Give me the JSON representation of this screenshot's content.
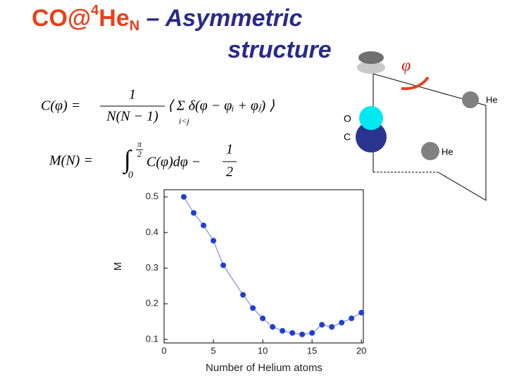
{
  "header": {
    "title": {
      "molecule": "CO@",
      "isotope": "4",
      "element": "He",
      "subscript": "N",
      "rest_line1": " – Asymmetric",
      "rest_line2": "structure"
    }
  },
  "formulas": [
    {
      "lhs": "C(φ) =",
      "numerator": "1",
      "denominator": "N(N − 1)",
      "body": "⟨ Σ δ(φ − φᵢ + φⱼ) ⟩",
      "sum_index": "i<j"
    },
    {
      "lhs": "M(N) =",
      "integral": "∫",
      "upper_limit_num": "π",
      "upper_limit_den": "2",
      "lower_limit": "0",
      "integrand": "C(φ)dφ −",
      "numerator": "1",
      "denominator": "2"
    }
  ],
  "diagram": {
    "angle": "φ",
    "labels": [
      "He",
      "O",
      "C",
      "He"
    ]
  },
  "chart_data": {
    "type": "line",
    "x_label": "Number of Helium atoms",
    "y_label": "M",
    "x": [
      2,
      3,
      4,
      5,
      6,
      8,
      9,
      10,
      11,
      12,
      13,
      14,
      15,
      16,
      17,
      18,
      19,
      20
    ],
    "series": [
      {
        "color": "#1f3fd0",
        "values": [
          0.5,
          0.455,
          0.42,
          0.377,
          0.308,
          0.225,
          0.188,
          0.159,
          0.135,
          0.124,
          0.118,
          0.114,
          0.118,
          0.141,
          0.135,
          0.147,
          0.159,
          0.175
        ]
      }
    ],
    "xlim": [
      0,
      20.2
    ],
    "ylim": [
      0.09,
      0.52
    ],
    "xticks": [
      0,
      5,
      10,
      15,
      20
    ],
    "yticks": [
      0.1,
      0.2,
      0.3,
      0.4,
      0.5
    ]
  }
}
